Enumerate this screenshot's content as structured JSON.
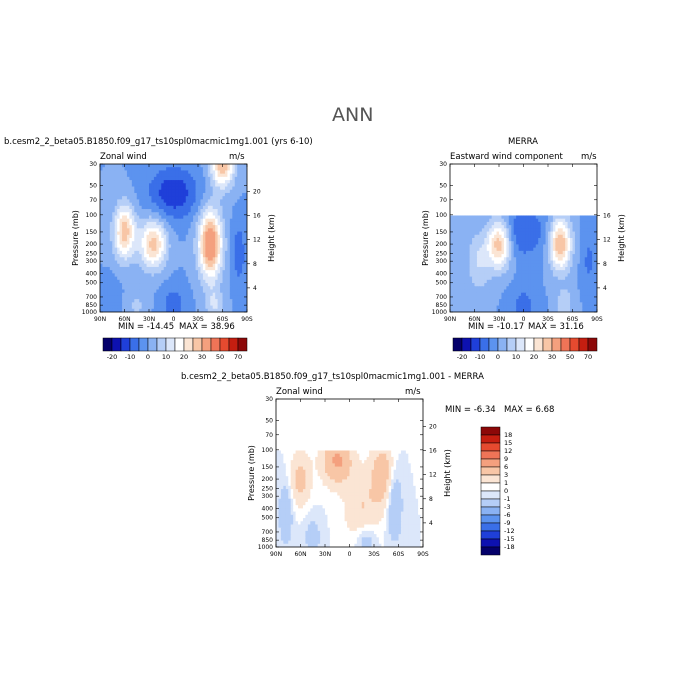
{
  "page": {
    "title": "ANN"
  },
  "colors": {
    "panel_scale": [
      "#04006a",
      "#0d11b0",
      "#1f3fd9",
      "#3a6fe8",
      "#5c93ef",
      "#8ab2f3",
      "#b5cef7",
      "#dce7fa",
      "#ffffff",
      "#fbe5d4",
      "#f8c6a6",
      "#f4a07e",
      "#ef7457",
      "#e64a2f",
      "#c51e10",
      "#8c0808"
    ],
    "diff_scale": [
      "#04006a",
      "#0d11b0",
      "#1f3fd9",
      "#3a6fe8",
      "#5c93ef",
      "#8ab2f3",
      "#b5cef7",
      "#dce7fa",
      "#ffffff",
      "#fbe5d4",
      "#f8c6a6",
      "#f4a07e",
      "#ef7457",
      "#e64a2f",
      "#c51e10",
      "#8c0808"
    ]
  },
  "chart_data": [
    {
      "type": "heatmap",
      "title": "b.cesm2_2_beta05.B1850.f09_g17_ts10spl0macmic1mg1.001 (yrs 6-10)",
      "left_label": "Zonal wind",
      "units": "m/s",
      "xlabel": "",
      "ylabel": "Pressure (mb)",
      "right_label": "Height (km)",
      "x_ticks": [
        "90N",
        "60N",
        "30N",
        "0",
        "30S",
        "60S",
        "90S"
      ],
      "y_ticks": [
        "30",
        "50",
        "70",
        "100",
        "150",
        "200",
        "250",
        "300",
        "400",
        "500",
        "700",
        "850",
        "1000"
      ],
      "right_ticks": [
        "20",
        "16",
        "12",
        "8",
        "4"
      ],
      "min": -14.45,
      "max": 38.96,
      "min_label": "MIN = -14.45",
      "max_label": "MAX = 38.96",
      "colorbar_labels": [
        "-20",
        "-10",
        "0",
        "10",
        "20",
        "30",
        "50",
        "70"
      ],
      "fields": [
        {
          "lat": 60,
          "p": 150,
          "amp": 28,
          "sx": 13,
          "sy": 1.05
        },
        {
          "lat": 25,
          "p": 200,
          "amp": 27,
          "sx": 16,
          "sy": 0.95
        },
        {
          "lat": -45,
          "p": 200,
          "amp": 39,
          "sx": 14,
          "sy": 1.3
        },
        {
          "lat": -60,
          "p": 30,
          "amp": 30,
          "sx": 14,
          "sy": 0.9
        },
        {
          "lat": -50,
          "p": 850,
          "amp": 10,
          "sx": 11,
          "sy": 0.7
        },
        {
          "lat": 45,
          "p": 850,
          "amp": 6,
          "sx": 12,
          "sy": 0.6
        },
        {
          "lat": 0,
          "p": 60,
          "amp": -14,
          "sx": 30,
          "sy": 1.0
        },
        {
          "lat": 0,
          "p": 850,
          "amp": -8,
          "sx": 15,
          "sy": 0.8
        },
        {
          "lat": -80,
          "p": 250,
          "amp": -8,
          "sx": 9,
          "sy": 1.3
        },
        {
          "lat": 75,
          "p": 700,
          "amp": -4,
          "sx": 10,
          "sy": 0.8
        }
      ]
    },
    {
      "type": "heatmap",
      "title": "MERRA",
      "left_label": "Eastward wind component",
      "units": "m/s",
      "xlabel": "",
      "ylabel": "Pressure (mb)",
      "right_label": "Height (km)",
      "x_ticks": [
        "90N",
        "60N",
        "30N",
        "0",
        "30S",
        "60S",
        "90S"
      ],
      "y_ticks": [
        "30",
        "50",
        "70",
        "100",
        "150",
        "200",
        "250",
        "300",
        "400",
        "500",
        "700",
        "850",
        "1000"
      ],
      "right_ticks": [
        "16",
        "12",
        "8",
        "4"
      ],
      "data_top_p": 100,
      "min": -10.17,
      "max": 31.16,
      "min_label": "MIN = -10.17",
      "max_label": "MAX = 31.16",
      "colorbar_labels": [
        "-20",
        "-10",
        "0",
        "10",
        "20",
        "30",
        "50",
        "70"
      ],
      "fields": [
        {
          "lat": 30,
          "p": 200,
          "amp": 29,
          "sx": 14,
          "sy": 0.95
        },
        {
          "lat": -45,
          "p": 200,
          "amp": 31,
          "sx": 13,
          "sy": 1.0
        },
        {
          "lat": 55,
          "p": 300,
          "amp": 10,
          "sx": 15,
          "sy": 1.2
        },
        {
          "lat": -50,
          "p": 850,
          "amp": 9,
          "sx": 11,
          "sy": 0.7
        },
        {
          "lat": 0,
          "p": 150,
          "amp": -10,
          "sx": 28,
          "sy": 1.0
        },
        {
          "lat": 0,
          "p": 850,
          "amp": -7,
          "sx": 16,
          "sy": 0.8
        },
        {
          "lat": -80,
          "p": 300,
          "amp": -6,
          "sx": 9,
          "sy": 1.2
        }
      ]
    },
    {
      "type": "heatmap",
      "title": "b.cesm2_2_beta05.B1850.f09_g17_ts10spl0macmic1mg1.001 - MERRA",
      "left_label": "Zonal wind",
      "units": "m/s",
      "xlabel": "",
      "ylabel": "Pressure (mb)",
      "right_label": "Height (km)",
      "x_ticks": [
        "90N",
        "60N",
        "30N",
        "0",
        "30S",
        "60S",
        "90S"
      ],
      "y_ticks": [
        "30",
        "50",
        "70",
        "100",
        "150",
        "200",
        "250",
        "300",
        "400",
        "500",
        "700",
        "850",
        "1000"
      ],
      "right_ticks": [
        "20",
        "16",
        "12",
        "8",
        "4"
      ],
      "data_top_p": 100,
      "min": -6.34,
      "max": 6.68,
      "min_label": "MIN =  -6.34",
      "max_label": "MAX =   6.68",
      "colorbar_labels": [
        "18",
        "15",
        "12",
        "9",
        "6",
        "3",
        "1",
        "0",
        "-1",
        "-3",
        "-6",
        "-9",
        "-12",
        "-15",
        "-18"
      ],
      "fields": [
        {
          "lat": 15,
          "p": 130,
          "amp": 6.5,
          "sx": 18,
          "sy": 0.9
        },
        {
          "lat": -40,
          "p": 180,
          "amp": 5,
          "sx": 14,
          "sy": 1.2
        },
        {
          "lat": 60,
          "p": 200,
          "amp": 4,
          "sx": 12,
          "sy": 1.0
        },
        {
          "lat": -15,
          "p": 400,
          "amp": 3,
          "sx": 20,
          "sy": 1.3
        },
        {
          "lat": -55,
          "p": 350,
          "amp": -3.5,
          "sx": 9,
          "sy": 1.4
        },
        {
          "lat": 78,
          "p": 450,
          "amp": -3,
          "sx": 8,
          "sy": 1.2
        },
        {
          "lat": -20,
          "p": 850,
          "amp": -2.5,
          "sx": 12,
          "sy": 0.7
        },
        {
          "lat": 45,
          "p": 800,
          "amp": -2,
          "sx": 10,
          "sy": 0.8
        }
      ]
    }
  ]
}
